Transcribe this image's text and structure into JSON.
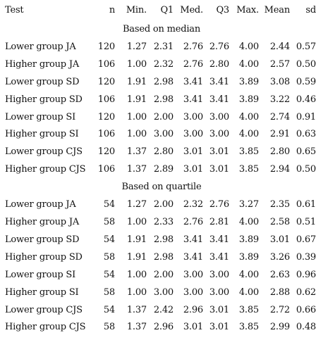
{
  "headers": [
    "Test",
    "n",
    "Min.",
    "Q1",
    "Med.",
    "Q3",
    "Max.",
    "Mean",
    "sd"
  ],
  "sections": [
    {
      "title": "Based on median",
      "rows": [
        [
          "Lower group JA",
          "120",
          "1.27",
          "2.31",
          "2.76",
          "2.76",
          "4.00",
          "2.44",
          "0.57"
        ],
        [
          "Higher group JA",
          "106",
          "1.00",
          "2.32",
          "2.76",
          "2.80",
          "4.00",
          "2.57",
          "0.50"
        ],
        [
          "Lower group SD",
          "120",
          "1.91",
          "2.98",
          "3.41",
          "3.41",
          "3.89",
          "3.08",
          "0.59"
        ],
        [
          "Higher group SD",
          "106",
          "1.91",
          "2.98",
          "3.41",
          "3.41",
          "3.89",
          "3.22",
          "0.46"
        ],
        [
          "Lower group SI",
          "120",
          "1.00",
          "2.00",
          "3.00",
          "3.00",
          "4.00",
          "2.74",
          "0.91"
        ],
        [
          "Higher group SI",
          "106",
          "1.00",
          "3.00",
          "3.00",
          "3.00",
          "4.00",
          "2.91",
          "0.63"
        ],
        [
          "Lower group CJS",
          "120",
          "1.37",
          "2.80",
          "3.01",
          "3.01",
          "3.85",
          "2.80",
          "0.65"
        ],
        [
          "Higher group CJS",
          "106",
          "1.37",
          "2.89",
          "3.01",
          "3.01",
          "3.85",
          "2.94",
          "0.50"
        ]
      ]
    },
    {
      "title": "Based on quartile",
      "rows": [
        [
          "Lower group JA",
          "54",
          "1.27",
          "2.00",
          "2.32",
          "2.76",
          "3.27",
          "2.35",
          "0.61"
        ],
        [
          "Higher group JA",
          "58",
          "1.00",
          "2.33",
          "2.76",
          "2.81",
          "4.00",
          "2.58",
          "0.51"
        ],
        [
          "Lower group SD",
          "54",
          "1.91",
          "2.98",
          "3.41",
          "3.41",
          "3.89",
          "3.01",
          "0.67"
        ],
        [
          "Higher group SD",
          "58",
          "1.91",
          "2.98",
          "3.41",
          "3.41",
          "3.89",
          "3.26",
          "0.39"
        ],
        [
          "Lower group SI",
          "54",
          "1.00",
          "2.00",
          "3.00",
          "3.00",
          "4.00",
          "2.63",
          "0.96"
        ],
        [
          "Higher group SI",
          "58",
          "1.00",
          "3.00",
          "3.00",
          "3.00",
          "4.00",
          "2.88",
          "0.62"
        ],
        [
          "Lower group CJS",
          "54",
          "1.37",
          "2.42",
          "2.96",
          "3.01",
          "3.85",
          "2.72",
          "0.66"
        ],
        [
          "Higher group CJS",
          "58",
          "1.37",
          "2.96",
          "3.01",
          "3.01",
          "3.85",
          "2.99",
          "0.48"
        ]
      ]
    }
  ]
}
